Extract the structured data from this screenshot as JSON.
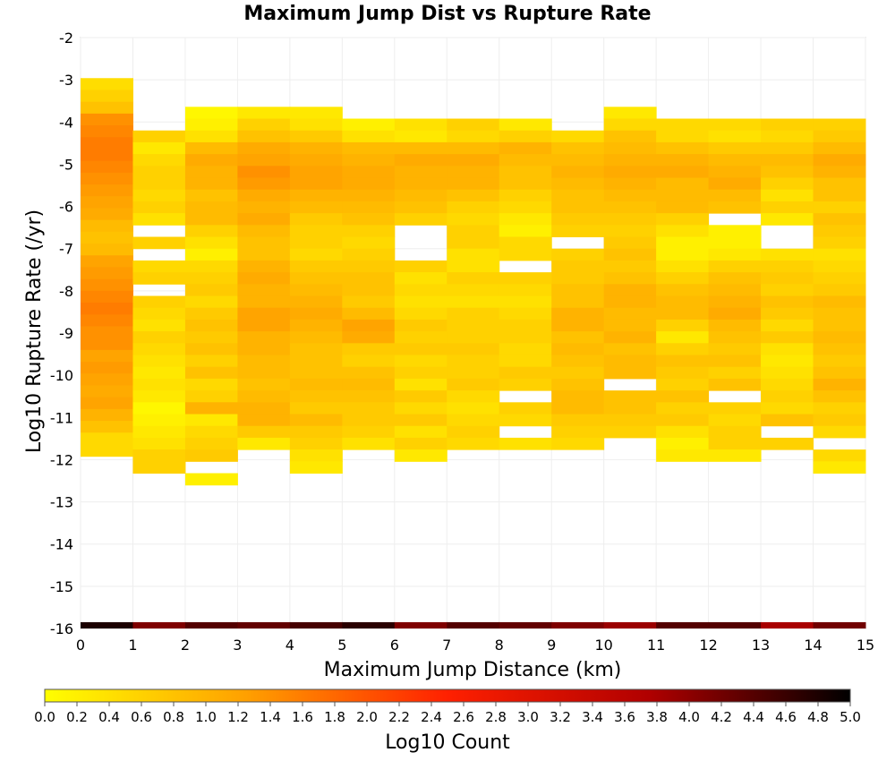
{
  "chart_data": {
    "type": "heatmap",
    "title": "Maximum Jump Dist vs Rupture Rate",
    "xlabel": "Maximum Jump Distance (km)",
    "ylabel": "Log10 Rupture Rate (/yr)",
    "xlim": [
      0,
      15
    ],
    "ylim": [
      -16,
      -2
    ],
    "x_ticks": [
      "0",
      "1",
      "2",
      "3",
      "4",
      "5",
      "6",
      "7",
      "8",
      "9",
      "10",
      "11",
      "12",
      "13",
      "14",
      "15"
    ],
    "y_ticks": [
      "-2",
      "-3",
      "-4",
      "-5",
      "-6",
      "-7",
      "-8",
      "-9",
      "-10",
      "-11",
      "-12",
      "-13",
      "-14",
      "-15",
      "-16"
    ],
    "x_bin_width": 1,
    "y_bin_width": 0.28,
    "colorbar": {
      "label": "Log10 Count",
      "range": [
        0.0,
        5.0
      ],
      "ticks": [
        "0.0",
        "0.2",
        "0.4",
        "0.6",
        "0.8",
        "1.0",
        "1.2",
        "1.4",
        "1.6",
        "1.8",
        "2.0",
        "2.2",
        "2.4",
        "2.6",
        "2.8",
        "3.0",
        "3.2",
        "3.4",
        "3.6",
        "3.8",
        "4.0",
        "4.2",
        "4.4",
        "4.6",
        "4.8",
        "5.0"
      ],
      "colors": [
        "#ffff00",
        "#ffa000",
        "#ff2000",
        "#b00000",
        "#000000"
      ]
    },
    "columns": [
      {
        "x": 0,
        "y_top": -2.96,
        "values": [
          0.45,
          0.6,
          0.8,
          1.4,
          1.5,
          1.6,
          1.6,
          1.5,
          1.4,
          1.3,
          1.2,
          1.1,
          0.9,
          0.8,
          0.9,
          1.2,
          1.3,
          1.4,
          1.5,
          1.6,
          1.5,
          1.4,
          1.4,
          1.2,
          1.3,
          1.2,
          1.1,
          1.2,
          1.0,
          0.8,
          0.5,
          0.5
        ]
      },
      {
        "x": 1,
        "y_top": -4.2,
        "values": [
          0.6,
          0.3,
          0.5,
          0.6,
          0.6,
          0.5,
          0.6,
          0.4,
          null,
          0.6,
          null,
          0.5,
          0.6,
          null,
          0.6,
          0.5,
          0.4,
          0.6,
          0.5,
          0.4,
          0.3,
          0.4,
          0.3,
          0.1,
          0.2,
          0.3,
          0.4,
          0.6,
          0.6
        ]
      },
      {
        "x": 2,
        "y_top": -3.64,
        "values": [
          0.1,
          0.2,
          0.4,
          0.9,
          1.1,
          1.0,
          1.0,
          0.8,
          0.9,
          0.9,
          0.6,
          0.4,
          0.2,
          0.5,
          0.6,
          0.7,
          0.5,
          0.7,
          0.8,
          0.7,
          0.8,
          0.6,
          0.8,
          0.5,
          0.6,
          1.0,
          0.3,
          0.5,
          0.6,
          0.7,
          null,
          0.2
        ]
      },
      {
        "x": 3,
        "y_top": -3.64,
        "values": [
          0.3,
          0.6,
          0.8,
          1.1,
          1.2,
          1.4,
          1.3,
          1.1,
          1.0,
          1.1,
          0.9,
          0.8,
          0.8,
          1.0,
          1.1,
          1.0,
          1.0,
          1.2,
          1.2,
          1.0,
          1.0,
          0.9,
          0.9,
          0.8,
          0.9,
          1.0,
          1.0,
          0.7,
          0.3
        ]
      },
      {
        "x": 4,
        "y_top": -3.64,
        "values": [
          0.3,
          0.4,
          0.7,
          1.0,
          1.1,
          1.2,
          1.2,
          1.0,
          0.9,
          0.7,
          0.6,
          0.6,
          0.5,
          0.7,
          0.8,
          0.9,
          1.0,
          1.1,
          1.0,
          0.9,
          0.8,
          0.8,
          0.8,
          0.9,
          0.8,
          0.7,
          0.9,
          0.7,
          0.6,
          0.4,
          0.3
        ]
      },
      {
        "x": 5,
        "y_top": -3.92,
        "values": [
          0.2,
          0.4,
          0.9,
          1.0,
          1.1,
          1.1,
          1.0,
          0.9,
          0.8,
          0.6,
          0.5,
          0.6,
          0.7,
          0.8,
          0.8,
          0.7,
          0.9,
          1.2,
          1.1,
          0.7,
          0.6,
          0.8,
          0.9,
          0.8,
          0.7,
          0.7,
          0.6,
          0.4
        ]
      },
      {
        "x": 6,
        "y_top": -3.92,
        "values": [
          0.4,
          0.3,
          0.9,
          1.1,
          1.0,
          1.0,
          0.9,
          0.8,
          0.6,
          null,
          null,
          null,
          0.6,
          0.4,
          0.5,
          0.4,
          0.5,
          0.7,
          0.6,
          0.7,
          0.5,
          0.6,
          0.4,
          0.7,
          0.5,
          0.7,
          0.4,
          0.6,
          0.3
        ]
      },
      {
        "x": 7,
        "y_top": -3.92,
        "values": [
          0.6,
          0.5,
          0.9,
          1.1,
          1.0,
          1.0,
          0.8,
          0.6,
          0.5,
          0.6,
          0.6,
          0.4,
          0.4,
          0.6,
          0.5,
          0.4,
          0.6,
          0.6,
          0.6,
          0.7,
          0.6,
          0.6,
          0.7,
          0.5,
          0.4,
          0.5,
          0.6,
          0.5
        ]
      },
      {
        "x": 8,
        "y_top": -3.92,
        "values": [
          0.3,
          0.6,
          1.0,
          0.9,
          0.8,
          0.8,
          0.6,
          0.5,
          0.3,
          0.2,
          0.5,
          0.5,
          null,
          0.6,
          0.5,
          0.4,
          0.5,
          0.6,
          0.6,
          0.5,
          0.5,
          0.7,
          0.6,
          null,
          0.6,
          0.5,
          null,
          0.4
        ]
      },
      {
        "x": 9,
        "y_top": -4.2,
        "values": [
          0.5,
          0.8,
          0.9,
          1.0,
          0.9,
          0.8,
          0.8,
          0.7,
          0.6,
          null,
          0.6,
          0.7,
          0.7,
          0.8,
          0.8,
          1.0,
          1.0,
          0.8,
          0.9,
          0.8,
          0.7,
          0.8,
          0.9,
          0.9,
          0.7,
          0.6,
          0.5
        ]
      },
      {
        "x": 10,
        "y_top": -3.64,
        "values": [
          0.3,
          0.5,
          0.8,
          0.9,
          1.0,
          1.1,
          1.0,
          0.9,
          0.8,
          0.7,
          0.6,
          0.7,
          0.8,
          0.7,
          0.8,
          1.0,
          1.0,
          0.9,
          0.9,
          1.0,
          0.8,
          0.9,
          0.9,
          null,
          0.8,
          0.8,
          0.7,
          0.6
        ]
      },
      {
        "x": 11,
        "y_top": -3.92,
        "values": [
          0.5,
          0.5,
          0.8,
          1.0,
          1.1,
          0.9,
          0.9,
          0.9,
          0.6,
          0.4,
          0.2,
          0.2,
          0.4,
          0.6,
          0.8,
          0.9,
          0.9,
          0.6,
          0.3,
          0.6,
          0.8,
          0.7,
          0.6,
          0.8,
          0.6,
          0.7,
          0.4,
          0.2,
          0.3
        ]
      },
      {
        "x": 12,
        "y_top": -3.92,
        "values": [
          0.5,
          0.4,
          0.7,
          0.9,
          1.0,
          1.1,
          0.9,
          0.8,
          null,
          0.2,
          0.2,
          0.3,
          0.6,
          0.8,
          0.9,
          1.0,
          1.1,
          0.9,
          0.8,
          0.7,
          0.8,
          0.6,
          0.8,
          null,
          0.6,
          0.5,
          0.6,
          0.6,
          0.3
        ]
      },
      {
        "x": 13,
        "y_top": -3.92,
        "values": [
          0.6,
          0.5,
          0.7,
          0.9,
          0.8,
          0.6,
          0.4,
          0.6,
          0.3,
          null,
          null,
          0.4,
          0.6,
          0.7,
          0.6,
          0.8,
          0.7,
          0.5,
          0.7,
          0.4,
          0.3,
          0.4,
          0.5,
          0.6,
          0.5,
          0.8,
          null,
          0.6
        ]
      },
      {
        "x": 14,
        "y_top": -3.92,
        "values": [
          0.6,
          0.7,
          0.9,
          1.1,
          1.0,
          0.8,
          0.8,
          0.6,
          0.8,
          0.7,
          0.6,
          0.4,
          0.5,
          0.6,
          0.7,
          0.9,
          0.8,
          0.8,
          0.9,
          0.8,
          0.7,
          0.8,
          1.0,
          0.8,
          0.6,
          0.7,
          0.5,
          null,
          0.5,
          0.3
        ]
      }
    ],
    "bottom_row": {
      "y": -16,
      "values": [
        4.8,
        4.1,
        4.4,
        4.3,
        4.5,
        4.7,
        4.1,
        4.4,
        4.3,
        4.1,
        3.9,
        4.4,
        4.4,
        3.8,
        4.2
      ]
    }
  }
}
